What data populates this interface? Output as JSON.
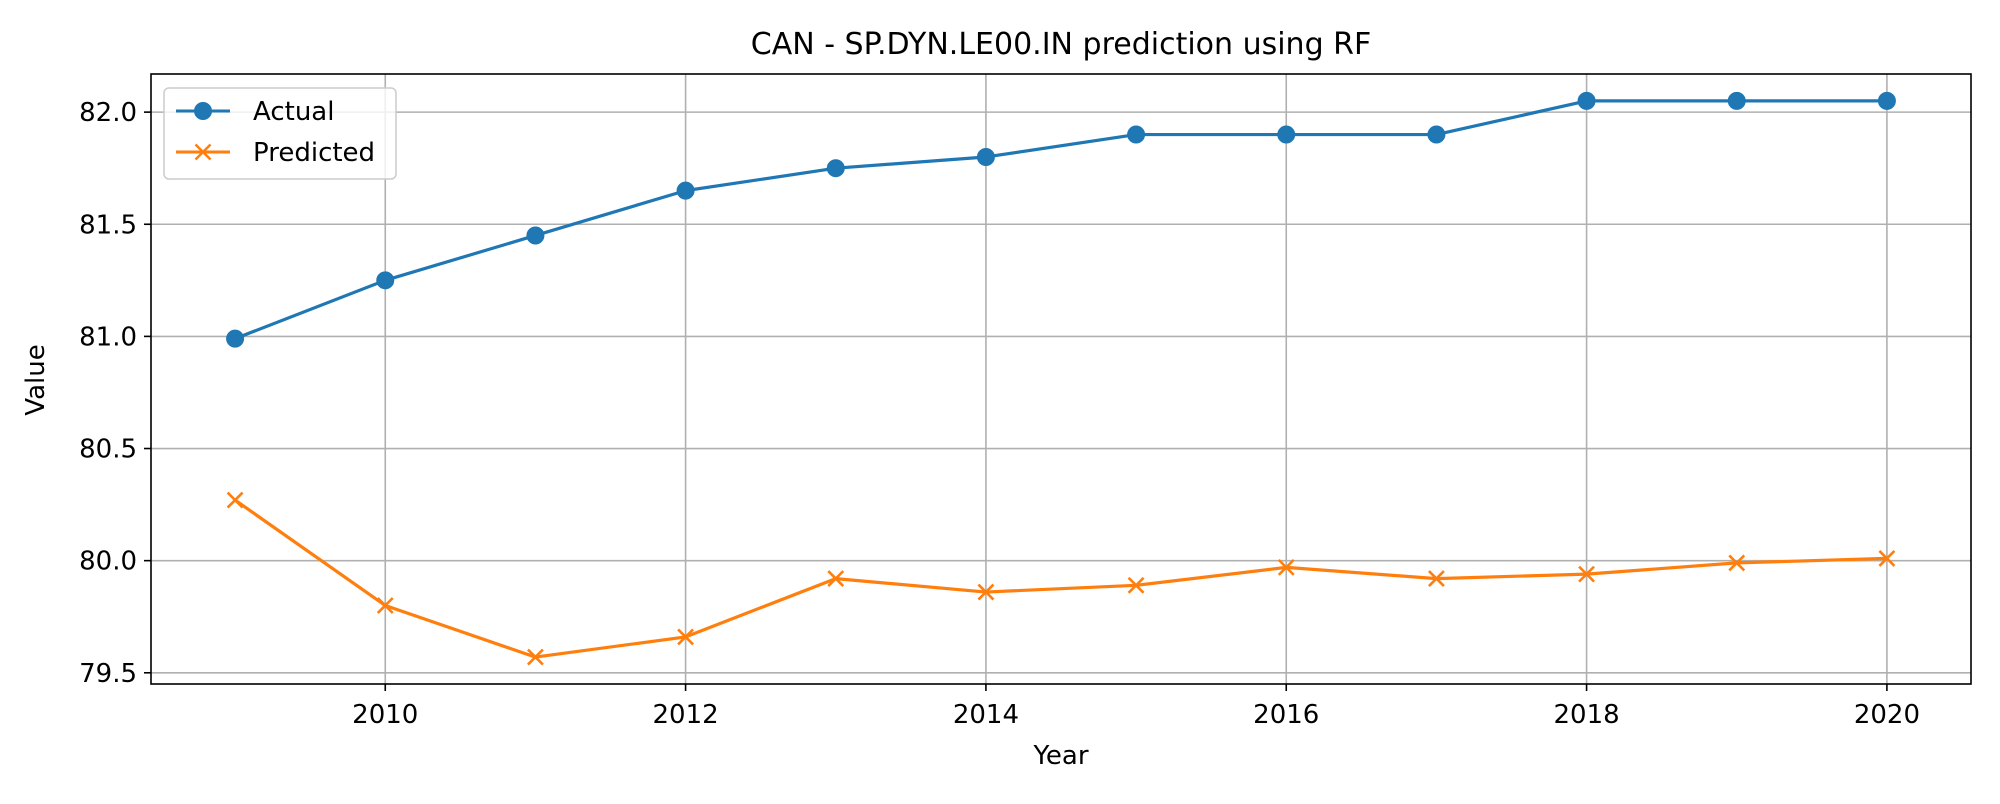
{
  "chart_data": {
    "type": "line",
    "title": "CAN - SP.DYN.LE00.IN prediction using RF",
    "xlabel": "Year",
    "ylabel": "Value",
    "x": [
      2009,
      2010,
      2011,
      2012,
      2013,
      2014,
      2015,
      2016,
      2017,
      2018,
      2019,
      2020
    ],
    "xlim": [
      2008.44,
      2020.56
    ],
    "ylim": [
      79.45,
      82.17
    ],
    "xticks": [
      2010,
      2012,
      2014,
      2016,
      2018,
      2020
    ],
    "xtick_labels": [
      "2010",
      "2012",
      "2014",
      "2016",
      "2018",
      "2020"
    ],
    "yticks": [
      79.5,
      80.0,
      80.5,
      81.0,
      81.5,
      82.0
    ],
    "ytick_labels": [
      "79.5",
      "80.0",
      "80.5",
      "81.0",
      "81.5",
      "82.0"
    ],
    "grid": true,
    "legend_position": "top-left",
    "series": [
      {
        "name": "Actual",
        "marker": "circle",
        "color": "#1f77b4",
        "values": [
          80.99,
          81.25,
          81.45,
          81.65,
          81.75,
          81.8,
          81.9,
          81.9,
          81.9,
          82.05,
          82.05,
          82.05
        ]
      },
      {
        "name": "Predicted",
        "marker": "x",
        "color": "#ff7f0e",
        "values": [
          80.27,
          79.8,
          79.57,
          79.66,
          79.92,
          79.86,
          79.89,
          79.97,
          79.92,
          79.94,
          79.99,
          80.01
        ]
      }
    ]
  }
}
